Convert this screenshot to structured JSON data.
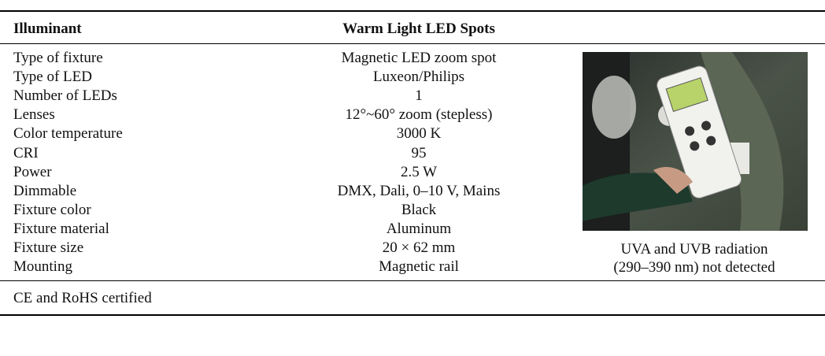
{
  "table": {
    "header": [
      "Illuminant",
      "Warm Light LED Spots"
    ],
    "rows": [
      [
        "Type of fixture",
        "Magnetic LED zoom spot"
      ],
      [
        "Type of LED",
        "Luxeon/Philips"
      ],
      [
        "Number of LEDs",
        "1"
      ],
      [
        "Lenses",
        "12°~60° zoom (stepless)"
      ],
      [
        "Color temperature",
        "3000 K"
      ],
      [
        "CRI",
        "95"
      ],
      [
        "Power",
        "2.5 W"
      ],
      [
        "Dimmable",
        "DMX, Dali, 0–10 V, Mains"
      ],
      [
        "Fixture color",
        "Black"
      ],
      [
        "Fixture material",
        "Aluminum"
      ],
      [
        "Fixture size",
        "20 × 62 mm"
      ],
      [
        "Mounting",
        "Magnetic rail"
      ]
    ],
    "photo_caption": [
      "UVA and UVB radiation",
      "(290–390 nm) not detected"
    ],
    "footnote": "CE and RoHS certified"
  }
}
